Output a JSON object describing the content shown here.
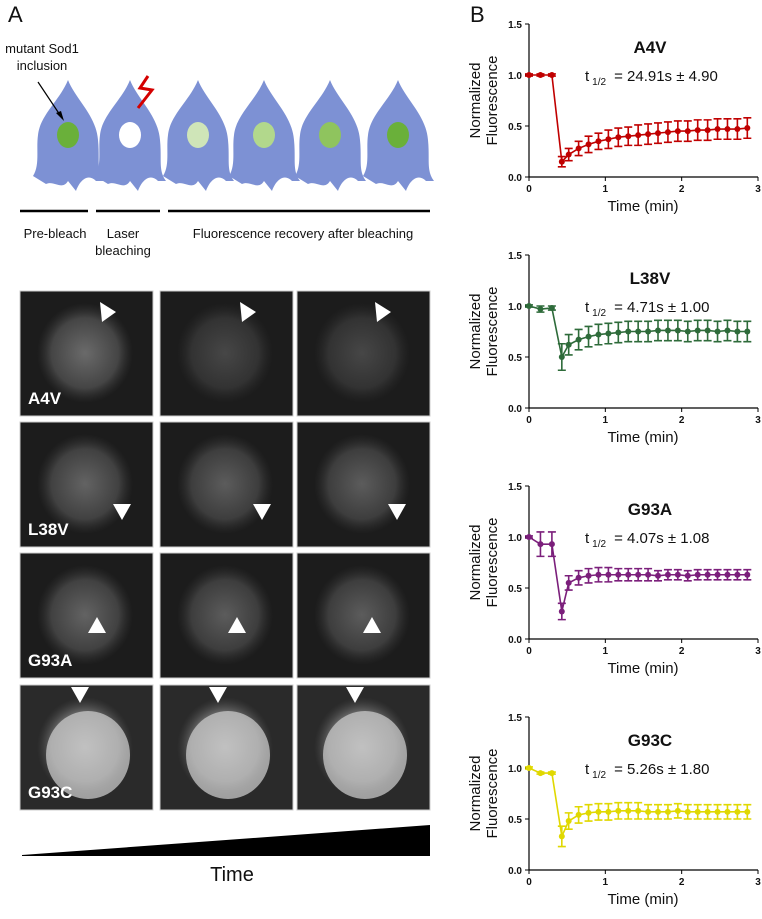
{
  "panel_labels": [
    "A",
    "B"
  ],
  "diagram": {
    "inclusion_label": [
      "mutant Sod1",
      "inclusion"
    ],
    "stage_labels": [
      [
        "Pre-bleach"
      ],
      [
        "Laser",
        "bleaching"
      ],
      [
        "Fluorescence recovery after bleaching"
      ]
    ]
  },
  "micrographs": {
    "rows": [
      "A4V",
      "L38V",
      "G93A",
      "G93C"
    ],
    "axis_label": "Time"
  },
  "chart_data": [
    {
      "type": "line",
      "title": "A4V",
      "annotation": {
        "symbol": "t",
        "subscript": "1/2",
        "text": "= 24.91s ± 4.90"
      },
      "color": "#c00000",
      "xlabel": "Time (min)",
      "ylabel": [
        "Normalized",
        "Fluorescence"
      ],
      "xlim": [
        0,
        3
      ],
      "ylim": [
        0,
        1.5
      ],
      "xticks": [
        0,
        1,
        2,
        3
      ],
      "yticks": [
        {
          "value": 0,
          "label": "0.0"
        },
        {
          "value": 0.5,
          "label": "0.5"
        },
        {
          "value": 1,
          "label": "1.0"
        },
        {
          "value": 1.5,
          "label": "1.5"
        }
      ],
      "x": [
        0,
        0.15,
        0.3,
        0.43,
        0.52,
        0.65,
        0.78,
        0.91,
        1.04,
        1.17,
        1.3,
        1.43,
        1.56,
        1.69,
        1.82,
        1.95,
        2.08,
        2.21,
        2.34,
        2.47,
        2.6,
        2.73,
        2.86
      ],
      "values": [
        1,
        1,
        1,
        0.15,
        0.22,
        0.28,
        0.32,
        0.35,
        0.37,
        0.39,
        0.4,
        0.41,
        0.42,
        0.43,
        0.44,
        0.45,
        0.45,
        0.46,
        0.46,
        0.47,
        0.47,
        0.47,
        0.48
      ],
      "errors": [
        0.01,
        0.01,
        0.01,
        0.05,
        0.06,
        0.07,
        0.08,
        0.08,
        0.09,
        0.09,
        0.09,
        0.1,
        0.1,
        0.1,
        0.1,
        0.1,
        0.1,
        0.1,
        0.1,
        0.1,
        0.1,
        0.1,
        0.1
      ]
    },
    {
      "type": "line",
      "title": "L38V",
      "annotation": {
        "symbol": "t",
        "subscript": "1/2",
        "text": "= 4.71s ± 1.00"
      },
      "color": "#2e6b3a",
      "xlabel": "Time (min)",
      "ylabel": [
        "Normalized",
        "Fluorescence"
      ],
      "xlim": [
        0,
        3
      ],
      "ylim": [
        0,
        1.5
      ],
      "xticks": [
        0,
        1,
        2,
        3
      ],
      "yticks": [
        {
          "value": 0,
          "label": "0.0"
        },
        {
          "value": 0.5,
          "label": "0.5"
        },
        {
          "value": 1,
          "label": "1.0"
        },
        {
          "value": 1.5,
          "label": "1.5"
        }
      ],
      "x": [
        0,
        0.15,
        0.3,
        0.43,
        0.52,
        0.65,
        0.78,
        0.91,
        1.04,
        1.17,
        1.3,
        1.43,
        1.56,
        1.69,
        1.82,
        1.95,
        2.08,
        2.21,
        2.34,
        2.47,
        2.6,
        2.73,
        2.86
      ],
      "values": [
        1,
        0.97,
        0.98,
        0.5,
        0.62,
        0.67,
        0.7,
        0.72,
        0.73,
        0.74,
        0.75,
        0.75,
        0.75,
        0.76,
        0.76,
        0.76,
        0.75,
        0.76,
        0.76,
        0.75,
        0.76,
        0.75,
        0.75
      ],
      "errors": [
        0.01,
        0.03,
        0.02,
        0.13,
        0.1,
        0.1,
        0.1,
        0.1,
        0.1,
        0.1,
        0.1,
        0.1,
        0.1,
        0.1,
        0.1,
        0.1,
        0.1,
        0.1,
        0.1,
        0.1,
        0.1,
        0.1,
        0.1
      ]
    },
    {
      "type": "line",
      "title": "G93A",
      "annotation": {
        "symbol": "t",
        "subscript": "1/2",
        "text": "= 4.07s ± 1.08"
      },
      "color": "#7b1f7b",
      "xlabel": "Time (min)",
      "ylabel": [
        "Normalized",
        "Fluorescence"
      ],
      "xlim": [
        0,
        3
      ],
      "ylim": [
        0,
        1.5
      ],
      "xticks": [
        0,
        1,
        2,
        3
      ],
      "yticks": [
        {
          "value": 0,
          "label": "0.0"
        },
        {
          "value": 0.5,
          "label": "0.5"
        },
        {
          "value": 1,
          "label": "1.0"
        },
        {
          "value": 1.5,
          "label": "1.5"
        }
      ],
      "x": [
        0,
        0.15,
        0.3,
        0.43,
        0.52,
        0.65,
        0.78,
        0.91,
        1.04,
        1.17,
        1.3,
        1.43,
        1.56,
        1.69,
        1.82,
        1.95,
        2.08,
        2.21,
        2.34,
        2.47,
        2.6,
        2.73,
        2.86
      ],
      "values": [
        1,
        0.93,
        0.93,
        0.27,
        0.55,
        0.6,
        0.62,
        0.63,
        0.63,
        0.63,
        0.63,
        0.63,
        0.63,
        0.62,
        0.63,
        0.63,
        0.62,
        0.63,
        0.63,
        0.63,
        0.63,
        0.63,
        0.63
      ],
      "errors": [
        0.01,
        0.12,
        0.12,
        0.08,
        0.07,
        0.07,
        0.07,
        0.07,
        0.07,
        0.06,
        0.06,
        0.06,
        0.06,
        0.05,
        0.05,
        0.05,
        0.05,
        0.05,
        0.05,
        0.05,
        0.05,
        0.05,
        0.05
      ]
    },
    {
      "type": "line",
      "title": "G93C",
      "annotation": {
        "symbol": "t",
        "subscript": "1/2",
        "text": "= 5.26s ± 1.80"
      },
      "color": "#e0d800",
      "xlabel": "Time (min)",
      "ylabel": [
        "Normalized",
        "Fluorescence"
      ],
      "xlim": [
        0,
        3
      ],
      "ylim": [
        0,
        1.5
      ],
      "xticks": [
        0,
        1,
        2,
        3
      ],
      "yticks": [
        {
          "value": 0,
          "label": "0.0"
        },
        {
          "value": 0.5,
          "label": "0.5"
        },
        {
          "value": 1,
          "label": "1.0"
        },
        {
          "value": 1.5,
          "label": "1.5"
        }
      ],
      "x": [
        0,
        0.15,
        0.3,
        0.43,
        0.52,
        0.65,
        0.78,
        0.91,
        1.04,
        1.17,
        1.3,
        1.43,
        1.56,
        1.69,
        1.82,
        1.95,
        2.08,
        2.21,
        2.34,
        2.47,
        2.6,
        2.73,
        2.86
      ],
      "values": [
        1,
        0.95,
        0.95,
        0.33,
        0.48,
        0.54,
        0.56,
        0.57,
        0.57,
        0.58,
        0.58,
        0.58,
        0.57,
        0.57,
        0.57,
        0.58,
        0.57,
        0.57,
        0.57,
        0.57,
        0.57,
        0.57,
        0.57
      ],
      "errors": [
        0.01,
        0.01,
        0.01,
        0.1,
        0.08,
        0.08,
        0.08,
        0.08,
        0.08,
        0.08,
        0.08,
        0.08,
        0.07,
        0.07,
        0.07,
        0.07,
        0.07,
        0.07,
        0.07,
        0.07,
        0.07,
        0.07,
        0.07
      ]
    }
  ]
}
